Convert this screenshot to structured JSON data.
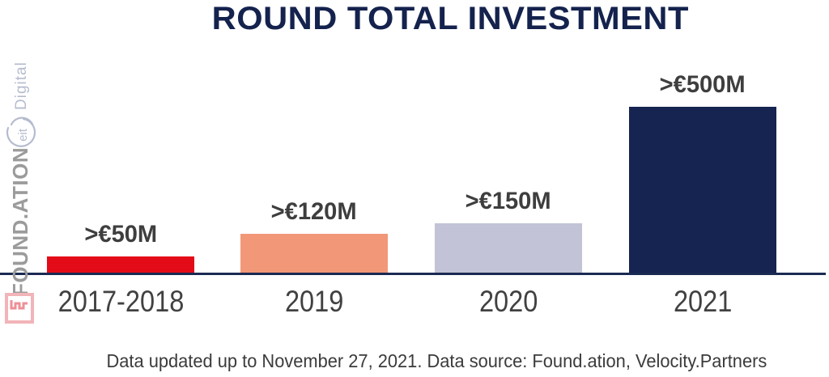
{
  "title": "ROUND TOTAL INVESTMENT",
  "footer": "Data updated up to November 27, 2021. Data source: Found.ation, Velocity.Partners",
  "branding": {
    "eit_circle_text": "eit",
    "eit_digital_text": "Digital",
    "foundation_text": "FOUND.ATION",
    "foundation_mark_icon": "foundation-square-wave-logo"
  },
  "colors": {
    "title_navy": "#14224d",
    "axis_navy": "#1b2a52",
    "label_gray": "#3e3e3e",
    "tick_gray": "#414141",
    "brand_gray": "#9b9b9b",
    "brand_periwinkle": "#b6bccf",
    "brand_pink": "#f2b4b8"
  },
  "chart_data": {
    "type": "bar",
    "title": "ROUND TOTAL INVESTMENT",
    "categories": [
      "2017-2018",
      "2019",
      "2020",
      "2021"
    ],
    "values": [
      50,
      120,
      150,
      500
    ],
    "value_labels": [
      ">€50M",
      ">€120M",
      ">€150M",
      ">€500M"
    ],
    "bar_colors": [
      "#e30b17",
      "#f29878",
      "#c2c3d6",
      "#152450"
    ],
    "xlabel": "",
    "ylabel": "",
    "ylim": [
      0,
      500
    ],
    "grid": false,
    "legend": "none"
  }
}
